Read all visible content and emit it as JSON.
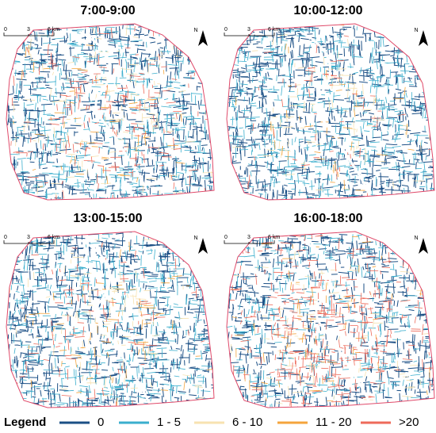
{
  "panels": [
    {
      "title": "7:00-9:00",
      "scale": [
        "0",
        "3",
        "6 km"
      ],
      "north": "N"
    },
    {
      "title": "10:00-12:00",
      "scale": [
        "0",
        "3",
        "6 km"
      ],
      "north": "N"
    },
    {
      "title": "13:00-15:00",
      "scale": [
        "0",
        "3",
        "6 km"
      ],
      "north": "N"
    },
    {
      "title": "16:00-18:00",
      "scale": [
        "0",
        "3",
        "6 km"
      ],
      "north": "N"
    }
  ],
  "legend": {
    "title": "Legend",
    "items": [
      {
        "label": "0",
        "color": "#1b4f85"
      },
      {
        "label": "1 - 5",
        "color": "#3aaecd"
      },
      {
        "label": "6 - 10",
        "color": "#f7e2b0"
      },
      {
        "label": "11 - 20",
        "color": "#f4a43c"
      },
      {
        "label": ">20",
        "color": "#ee6a5a"
      }
    ]
  }
}
